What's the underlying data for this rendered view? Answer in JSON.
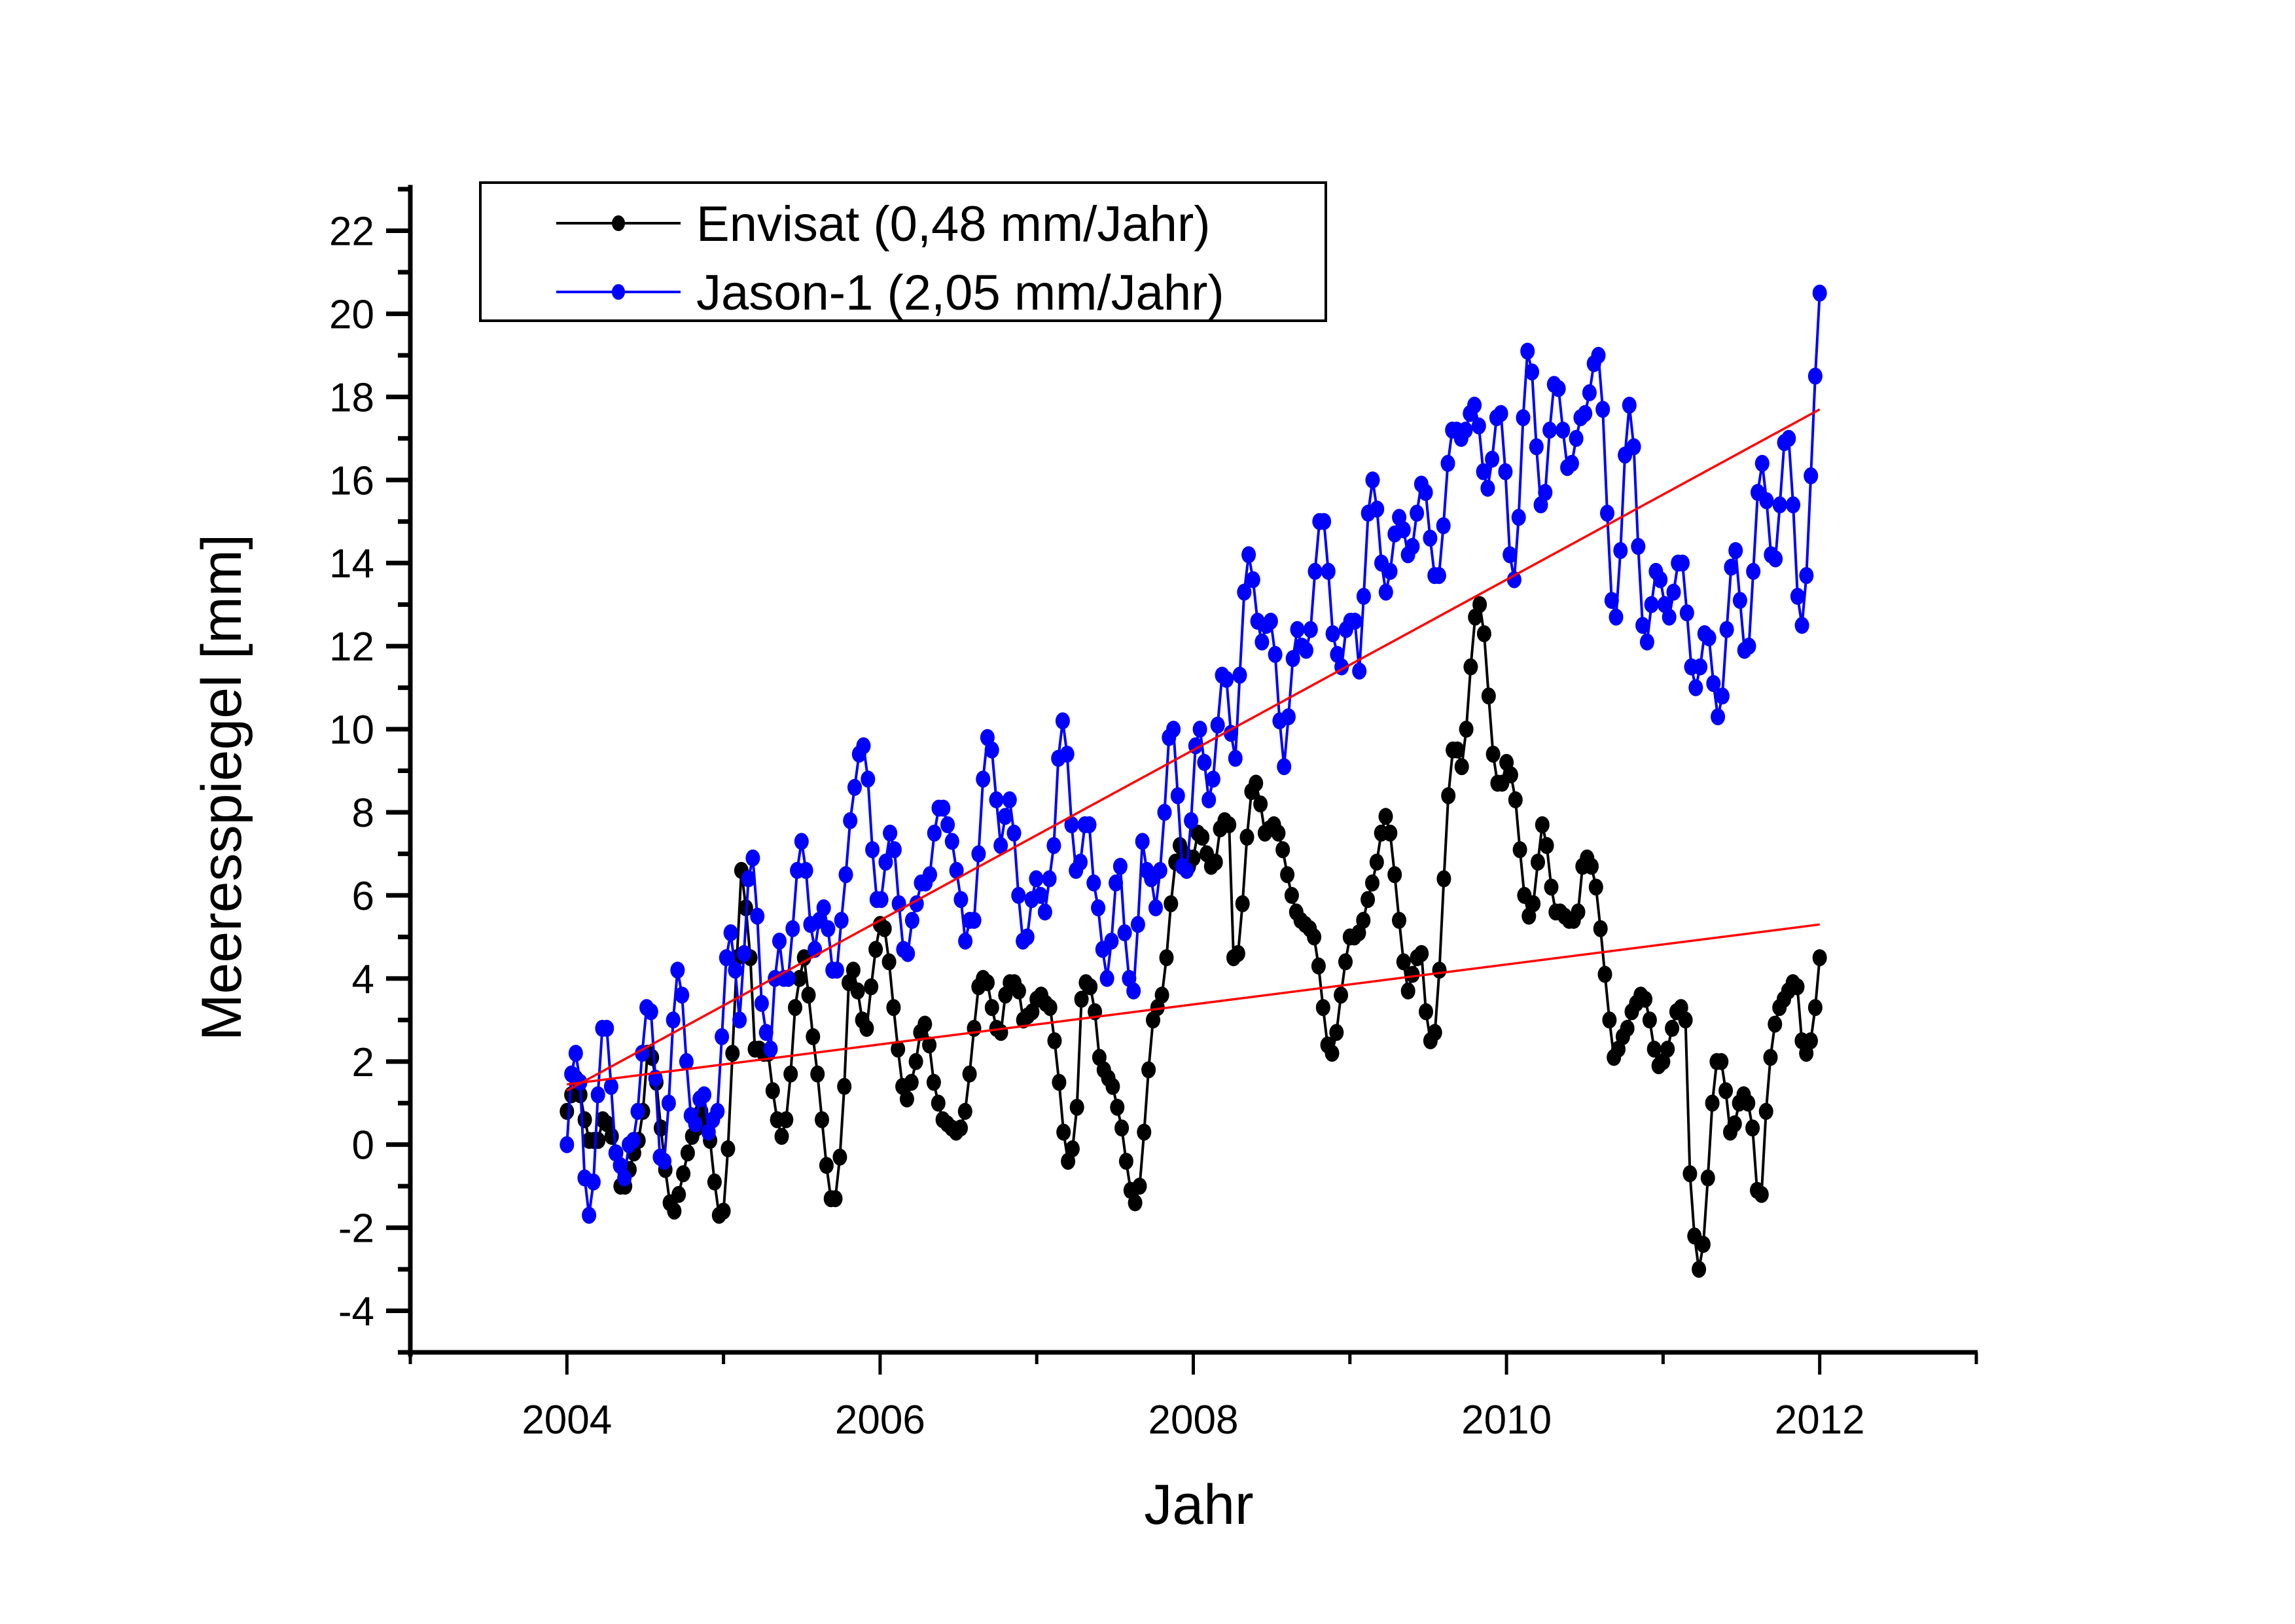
{
  "chart_data": {
    "type": "line",
    "title": "",
    "xlabel": "Jahr",
    "ylabel": "Meeresspiegel [mm]",
    "xlim": [
      2003,
      2013
    ],
    "ylim": [
      -5,
      23
    ],
    "x_ticks_major": [
      2004,
      2006,
      2008,
      2010,
      2012
    ],
    "x_tick_labels": [
      "2004",
      "2006",
      "2008",
      "2010",
      "2012"
    ],
    "y_ticks_major": [
      -4,
      -2,
      0,
      2,
      4,
      6,
      8,
      10,
      12,
      14,
      16,
      18,
      20,
      22
    ],
    "y_tick_labels": [
      "-4",
      "-2",
      "0",
      "2",
      "4",
      "6",
      "8",
      "10",
      "12",
      "14",
      "16",
      "18",
      "20",
      "22"
    ],
    "grid": false,
    "legend_position": "top-left",
    "series": [
      {
        "name": "Envisat (0,48 mm/Jahr)",
        "color": "#000000",
        "marker": "circle",
        "x_start": 2004.0,
        "x_end": 2012.0,
        "values": [
          0.8,
          1.2,
          1.6,
          1.2,
          0.6,
          0.1,
          0.1,
          0.1,
          0.6,
          0.5,
          0.2,
          -0.2,
          -1.0,
          -1.0,
          -0.6,
          -0.2,
          0.1,
          0.8,
          2.2,
          2.1,
          1.5,
          0.4,
          -0.6,
          -1.4,
          -1.6,
          -1.2,
          -0.7,
          -0.2,
          0.2,
          0.4,
          0.8,
          0.5,
          0.1,
          -0.9,
          -1.7,
          -1.6,
          -0.1,
          2.2,
          4.5,
          6.6,
          5.7,
          4.5,
          2.3,
          2.3,
          2.2,
          2.2,
          1.3,
          0.6,
          0.2,
          0.6,
          1.7,
          3.3,
          4.0,
          4.5,
          3.6,
          2.6,
          1.7,
          0.6,
          -0.5,
          -1.3,
          -1.3,
          -0.3,
          1.4,
          3.9,
          4.2,
          3.7,
          3.0,
          2.8,
          3.8,
          4.7,
          5.3,
          5.2,
          4.4,
          3.3,
          2.3,
          1.4,
          1.1,
          1.5,
          2.0,
          2.7,
          2.9,
          2.4,
          1.5,
          1.0,
          0.6,
          0.5,
          0.4,
          0.3,
          0.4,
          0.8,
          1.7,
          2.8,
          3.8,
          4.0,
          3.9,
          3.3,
          2.8,
          2.7,
          3.6,
          3.9,
          3.9,
          3.7,
          3.0,
          3.1,
          3.2,
          3.5,
          3.6,
          3.4,
          3.3,
          2.5,
          1.5,
          0.3,
          -0.4,
          -0.1,
          0.9,
          3.5,
          3.9,
          3.8,
          3.2,
          2.1,
          1.8,
          1.6,
          1.4,
          0.9,
          0.4,
          -0.4,
          -1.1,
          -1.4,
          -1.0,
          0.3,
          1.8,
          3.0,
          3.3,
          3.6,
          4.5,
          5.8,
          6.8,
          7.2,
          7.0,
          6.7,
          6.9,
          7.5,
          7.4,
          7.0,
          6.7,
          6.8,
          7.6,
          7.8,
          7.7,
          4.5,
          4.6,
          5.8,
          7.4,
          8.5,
          8.7,
          8.2,
          7.5,
          7.6,
          7.7,
          7.5,
          7.1,
          6.5,
          6.0,
          5.6,
          5.4,
          5.3,
          5.2,
          5.0,
          4.3,
          3.3,
          2.4,
          2.2,
          2.7,
          3.6,
          4.4,
          5.0,
          5.0,
          5.1,
          5.4,
          5.9,
          6.3,
          6.8,
          7.5,
          7.9,
          7.5,
          6.5,
          5.4,
          4.4,
          3.7,
          4.1,
          4.5,
          4.6,
          3.2,
          2.5,
          2.7,
          4.2,
          6.4,
          8.4,
          9.5,
          9.5,
          9.1,
          10.0,
          11.5,
          12.7,
          13.0,
          12.3,
          10.8,
          9.4,
          8.7,
          8.7,
          9.2,
          8.9,
          8.3,
          7.1,
          6.0,
          5.5,
          5.8,
          6.8,
          7.7,
          7.2,
          6.2,
          5.6,
          5.6,
          5.5,
          5.4,
          5.4,
          5.6,
          6.7,
          6.9,
          6.7,
          6.2,
          5.2,
          4.1,
          3.0,
          2.1,
          2.3,
          2.6,
          2.8,
          3.2,
          3.4,
          3.6,
          3.5,
          3.0,
          2.3,
          1.9,
          2.0,
          2.3,
          2.8,
          3.2,
          3.3,
          3.0,
          -0.7,
          -2.2,
          -3.0,
          -2.4,
          -0.8,
          1.0,
          2.0,
          2.0,
          1.3,
          0.3,
          0.5,
          1.0,
          1.2,
          1.0,
          0.4,
          -1.1,
          -1.2,
          0.8,
          2.1,
          2.9,
          3.3,
          3.5,
          3.7,
          3.9,
          3.8,
          2.5,
          2.2,
          2.5,
          3.3,
          4.5
        ],
        "trend": {
          "rate_label": "0,48 mm/Jahr",
          "color": "#ff0000",
          "x": [
            2004.0,
            2012.0
          ],
          "y": [
            1.45,
            5.3
          ]
        }
      },
      {
        "name": "Jason-1 (2,05 mm/Jahr)",
        "color": "#0000ff",
        "marker": "circle",
        "x_start": 2004.0,
        "x_end": 2012.0,
        "values": [
          0.0,
          1.7,
          2.2,
          1.5,
          -0.8,
          -1.7,
          -0.9,
          1.2,
          2.8,
          2.8,
          1.4,
          -0.2,
          -0.5,
          -0.8,
          0.0,
          0.1,
          0.8,
          2.2,
          3.3,
          3.2,
          1.6,
          -0.3,
          -0.4,
          1.0,
          3.0,
          4.2,
          3.6,
          2.0,
          0.7,
          0.5,
          1.1,
          1.2,
          0.3,
          0.6,
          0.8,
          2.6,
          4.5,
          5.1,
          4.2,
          3.0,
          4.6,
          6.4,
          6.9,
          5.5,
          3.4,
          2.7,
          2.3,
          4.0,
          4.9,
          4.0,
          4.0,
          5.2,
          6.6,
          7.3,
          6.6,
          5.3,
          4.7,
          5.4,
          5.7,
          5.2,
          4.2,
          4.2,
          5.4,
          6.5,
          7.8,
          8.6,
          9.4,
          9.6,
          8.8,
          7.1,
          5.9,
          5.9,
          6.8,
          7.5,
          7.1,
          5.8,
          4.7,
          4.6,
          5.4,
          5.8,
          6.3,
          6.3,
          6.5,
          7.5,
          8.1,
          8.1,
          7.7,
          7.3,
          6.6,
          5.9,
          4.9,
          5.4,
          5.4,
          7.0,
          8.8,
          9.8,
          9.5,
          8.3,
          7.2,
          7.9,
          8.3,
          7.5,
          6.0,
          4.9,
          5.0,
          5.9,
          6.4,
          6.0,
          5.6,
          6.4,
          7.2,
          9.3,
          10.2,
          9.4,
          7.7,
          6.6,
          6.8,
          7.7,
          7.7,
          6.3,
          5.7,
          4.7,
          4.0,
          4.9,
          6.3,
          6.7,
          5.1,
          4.0,
          3.7,
          5.3,
          7.3,
          6.6,
          6.4,
          5.7,
          6.6,
          8.0,
          9.8,
          10.0,
          8.4,
          6.7,
          6.6,
          7.8,
          9.6,
          10.0,
          9.2,
          8.3,
          8.8,
          10.1,
          11.3,
          11.2,
          9.9,
          9.3,
          11.3,
          13.3,
          14.2,
          13.6,
          12.6,
          12.1,
          12.5,
          12.6,
          11.8,
          10.2,
          9.1,
          10.3,
          11.7,
          12.4,
          12.0,
          11.9,
          12.4,
          13.8,
          15.0,
          15.0,
          13.8,
          12.3,
          11.8,
          11.5,
          12.4,
          12.6,
          12.6,
          11.4,
          13.2,
          15.2,
          16.0,
          15.3,
          14.0,
          13.3,
          13.8,
          14.7,
          15.1,
          14.8,
          14.2,
          14.4,
          15.2,
          15.9,
          15.7,
          14.6,
          13.7,
          13.7,
          14.9,
          16.4,
          17.2,
          17.2,
          17.0,
          17.2,
          17.6,
          17.8,
          17.3,
          16.2,
          15.8,
          16.5,
          17.5,
          17.6,
          16.2,
          14.2,
          13.6,
          15.1,
          17.5,
          19.1,
          18.6,
          16.8,
          15.4,
          15.7,
          17.2,
          18.3,
          18.2,
          17.2,
          16.3,
          16.4,
          17.0,
          17.5,
          17.6,
          18.1,
          18.8,
          19.0,
          17.7,
          15.2,
          13.1,
          12.7,
          14.3,
          16.6,
          17.8,
          16.8,
          14.4,
          12.5,
          12.1,
          13.0,
          13.8,
          13.6,
          13.0,
          12.7,
          13.3,
          14.0,
          14.0,
          12.8,
          11.5,
          11.0,
          11.5,
          12.3,
          12.2,
          11.1,
          10.3,
          10.8,
          12.4,
          13.9,
          14.3,
          13.1,
          11.9,
          12.0,
          13.8,
          15.7,
          16.4,
          15.5,
          14.2,
          14.1,
          15.4,
          16.9,
          17.0,
          15.4,
          13.2,
          12.5,
          13.7,
          16.1,
          18.5,
          20.5
        ],
        "trend": {
          "rate_label": "2,05 mm/Jahr",
          "color": "#ff0000",
          "x": [
            2004.0,
            2012.0
          ],
          "y": [
            1.3,
            17.7
          ]
        }
      }
    ]
  },
  "legend": {
    "items": [
      {
        "label": "Envisat (0,48 mm/Jahr)",
        "color": "#000000"
      },
      {
        "label": "Jason-1 (2,05 mm/Jahr)",
        "color": "#0000ff"
      }
    ]
  },
  "axes": {
    "x_title": "Jahr",
    "y_title": "Meeresspiegel [mm]"
  }
}
